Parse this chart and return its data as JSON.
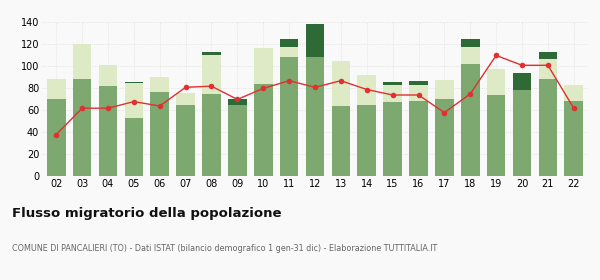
{
  "years": [
    "02",
    "03",
    "04",
    "05",
    "06",
    "07",
    "08",
    "09",
    "10",
    "11",
    "12",
    "13",
    "14",
    "15",
    "16",
    "17",
    "18",
    "19",
    "20",
    "21",
    "22"
  ],
  "iscritti_comuni": [
    70,
    89,
    82,
    53,
    77,
    65,
    75,
    65,
    84,
    109,
    109,
    64,
    65,
    68,
    69,
    70,
    102,
    74,
    79,
    89,
    69
  ],
  "iscritti_estero": [
    19,
    31,
    19,
    32,
    13,
    11,
    35,
    0,
    33,
    9,
    0,
    41,
    27,
    15,
    14,
    18,
    16,
    24,
    0,
    18,
    14
  ],
  "iscritti_altri": [
    0,
    0,
    0,
    1,
    0,
    0,
    3,
    5,
    0,
    7,
    30,
    0,
    0,
    3,
    4,
    0,
    7,
    0,
    15,
    6,
    0
  ],
  "cancellati": [
    38,
    62,
    62,
    68,
    64,
    81,
    82,
    70,
    80,
    87,
    81,
    87,
    79,
    74,
    74,
    58,
    75,
    110,
    101,
    101,
    62
  ],
  "color_comuni": "#7da870",
  "color_estero": "#deeac5",
  "color_altri": "#2d6a35",
  "color_cancellati": "#e03030",
  "ylim": [
    0,
    140
  ],
  "yticks": [
    0,
    20,
    40,
    60,
    80,
    100,
    120,
    140
  ],
  "title": "Flusso migratorio della popolazione",
  "subtitle": "COMUNE DI PANCALIERI (TO) - Dati ISTAT (bilancio demografico 1 gen-31 dic) - Elaborazione TUTTITALIA.IT",
  "bg_color": "#f9f9f9",
  "grid_color": "#d8d8d8"
}
